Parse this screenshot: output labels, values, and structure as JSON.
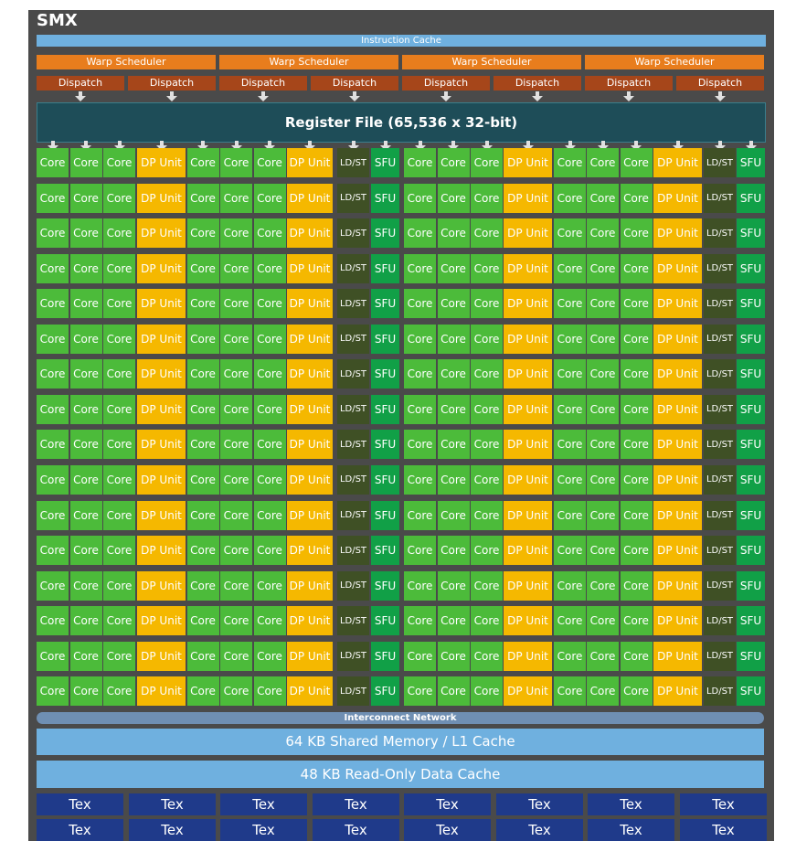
{
  "smx_title": "SMX",
  "instruction_cache": "Instruction Cache",
  "warp_schedulers": [
    "Warp Scheduler",
    "Warp Scheduler",
    "Warp Scheduler",
    "Warp Scheduler"
  ],
  "dispatch_units": [
    "Dispatch",
    "Dispatch",
    "Dispatch",
    "Dispatch",
    "Dispatch",
    "Dispatch",
    "Dispatch",
    "Dispatch"
  ],
  "register_file": "Register File (65,536 x 32-bit)",
  "unit_row": [
    "Core",
    "Core",
    "Core",
    "DP Unit",
    "Core",
    "Core",
    "Core",
    "DP Unit",
    "LD/ST",
    "SFU",
    "Core",
    "Core",
    "Core",
    "DP Unit",
    "Core",
    "Core",
    "Core",
    "DP Unit",
    "LD/ST",
    "SFU"
  ],
  "unit_row_count": 16,
  "interconnect_network": "Interconnect Network",
  "shared_memory": "64 KB Shared Memory / L1 Cache",
  "readonly_cache": "48 KB Read-Only Data Cache",
  "tex_row1": [
    "Tex",
    "Tex",
    "Tex",
    "Tex",
    "Tex",
    "Tex",
    "Tex",
    "Tex"
  ],
  "tex_row2": [
    "Tex",
    "Tex",
    "Tex",
    "Tex",
    "Tex",
    "Tex",
    "Tex",
    "Tex"
  ],
  "colors": {
    "frame": "#4a4a4a",
    "cache": "#6fb0df",
    "warp_scheduler": "#e87d1d",
    "dispatch": "#a6461a",
    "register_file": "#1e4d58",
    "core": "#4cbb3a",
    "dp_unit": "#f5b800",
    "ldst": "#3f5025",
    "sfu": "#11a047",
    "interconnect": "#6f8fb3",
    "tex": "#1f3a8a"
  }
}
